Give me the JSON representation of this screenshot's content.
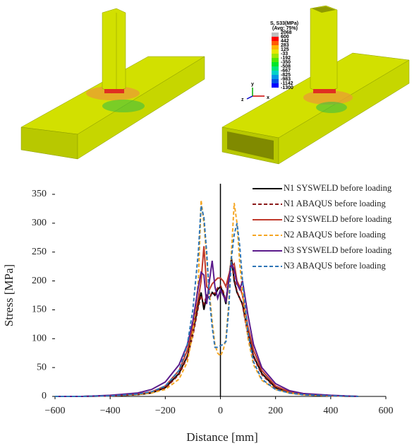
{
  "figure": {
    "contour_title": "S, S33(MPa)",
    "contour_subtitle": "(Avg: 75%)",
    "contour_labels": [
      "2068",
      "600",
      "442",
      "283",
      "125",
      "-33",
      "-192",
      "-350",
      "-508",
      "-667",
      "-825",
      "-983",
      "-1142",
      "-1300"
    ],
    "triad": [
      "z",
      "y",
      "x"
    ]
  },
  "chart_data": {
    "type": "line",
    "xlabel": "Distance [mm]",
    "ylabel": "Stress [MPa]",
    "x": [
      -600,
      -500,
      -400,
      -300,
      -250,
      -200,
      -150,
      -120,
      -100,
      -80,
      -70,
      -60,
      -50,
      -40,
      -30,
      -20,
      -10,
      0,
      10,
      20,
      30,
      40,
      50,
      60,
      70,
      80,
      100,
      120,
      150,
      200,
      250,
      300,
      400,
      500
    ],
    "series": [
      {
        "name": "N1 SYSWELD before loading",
        "color": "#000000",
        "dash": false,
        "values": [
          0,
          0,
          1,
          3,
          6,
          15,
          40,
          70,
          110,
          160,
          180,
          150,
          175,
          170,
          180,
          175,
          185,
          190,
          180,
          160,
          200,
          240,
          200,
          180,
          170,
          160,
          110,
          70,
          40,
          15,
          6,
          3,
          1,
          0
        ]
      },
      {
        "name": "N1 ABAQUS before loading",
        "color": "#8b1a1a",
        "dash": true,
        "values": [
          0,
          0,
          1,
          3,
          6,
          14,
          38,
          68,
          105,
          155,
          175,
          160,
          175,
          170,
          180,
          178,
          188,
          192,
          182,
          165,
          205,
          235,
          205,
          182,
          170,
          158,
          105,
          68,
          38,
          14,
          6,
          3,
          1,
          0
        ]
      },
      {
        "name": "N2 SYSWELD before loading",
        "color": "#c0392b",
        "dash": false,
        "values": [
          0,
          0,
          1,
          4,
          8,
          18,
          45,
          80,
          120,
          170,
          200,
          260,
          190,
          185,
          195,
          200,
          205,
          205,
          200,
          190,
          210,
          225,
          230,
          200,
          190,
          175,
          120,
          80,
          45,
          18,
          8,
          4,
          1,
          0
        ]
      },
      {
        "name": "N2 ABAQUS before loading",
        "color": "#f5a623",
        "dash": true,
        "values": [
          0,
          0,
          1,
          3,
          6,
          12,
          30,
          60,
          110,
          200,
          340,
          300,
          240,
          180,
          130,
          90,
          75,
          70,
          80,
          100,
          160,
          250,
          335,
          300,
          230,
          180,
          100,
          55,
          28,
          12,
          6,
          3,
          1,
          0
        ]
      },
      {
        "name": "N3 SYSWELD before loading",
        "color": "#5b1a8b",
        "dash": false,
        "values": [
          0,
          0,
          2,
          6,
          12,
          25,
          55,
          90,
          130,
          190,
          215,
          210,
          160,
          200,
          235,
          190,
          170,
          185,
          175,
          165,
          200,
          230,
          220,
          195,
          185,
          200,
          140,
          90,
          50,
          22,
          10,
          5,
          2,
          0
        ]
      },
      {
        "name": "N3 ABAQUS before loading",
        "color": "#2e75b6",
        "dash": true,
        "values": [
          0,
          0,
          1,
          4,
          8,
          18,
          45,
          90,
          150,
          250,
          330,
          310,
          250,
          170,
          120,
          85,
          85,
          88,
          90,
          95,
          150,
          240,
          280,
          300,
          260,
          200,
          110,
          60,
          30,
          12,
          6,
          3,
          1,
          0
        ]
      }
    ],
    "xlim": [
      -600,
      600
    ],
    "xticks": [
      {
        "value": -600,
        "label": "−600"
      },
      {
        "value": -400,
        "label": "−400"
      },
      {
        "value": -200,
        "label": "−200"
      },
      0,
      200,
      400,
      600
    ],
    "ylim": [
      0,
      350
    ],
    "yticks": [
      0,
      50,
      100,
      150,
      200,
      250,
      300,
      350
    ]
  }
}
